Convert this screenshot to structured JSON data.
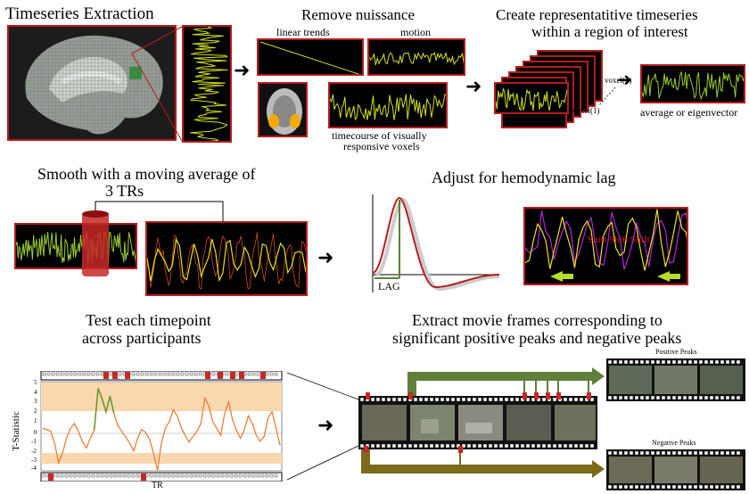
{
  "colors": {
    "frame": "#b71c1c",
    "signal": "#d4e020",
    "green": "#7aa83a",
    "orange": "#e8772e",
    "positive_arrow": "#5f7f3a",
    "negative_arrow": "#7a6a1a"
  },
  "section1": {
    "title": "Timeseries Extraction",
    "nuisance_title": "Remove nuissance",
    "linear_trends": "linear trends",
    "motion": "motion",
    "timecourse_line1": "timecourse of visually",
    "timecourse_line2": "responsive voxels",
    "roi_title_line1": "Create representatitive timeseries",
    "roi_title_line2": "within a region of interest",
    "voxel_n": "voxel(n)",
    "voxel_1": "voxel(1)",
    "average_label": "average or eigenvector"
  },
  "section2": {
    "smooth_line1": "Smooth with a moving average of",
    "smooth_line2": "3 TRs",
    "lag_title": "Adjust for hemodynamic lag",
    "lag_label": "LAG",
    "shift_label": "Shift Shift Shift"
  },
  "section3": {
    "test_line1": "Test each timepoint",
    "test_line2": "across participants",
    "extract_line1": "Extract movie frames corresponding to",
    "extract_line2": "significant positive peaks and negative peaks",
    "y_axis_label": "T-Statistic",
    "x_axis_label": "TR",
    "y_ticks": [
      "5",
      "4",
      "3",
      "2",
      "1",
      "0",
      "-1",
      "-2",
      "-3",
      "-4"
    ],
    "positive_peaks": "Positive Peaks",
    "negative_peaks": "Negative Peaks"
  }
}
